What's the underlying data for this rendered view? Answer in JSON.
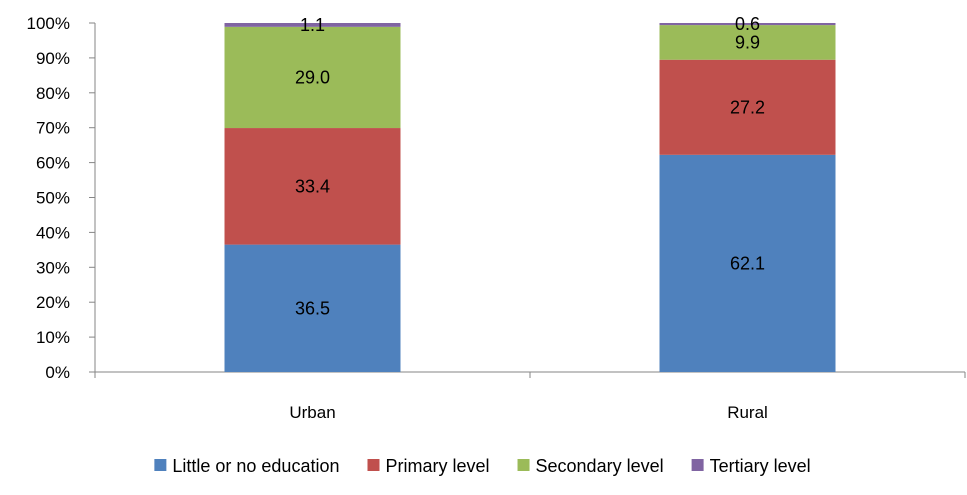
{
  "chart_data": {
    "type": "bar",
    "stacked": true,
    "normalized": true,
    "categories": [
      "Urban",
      "Rural"
    ],
    "series": [
      {
        "name": "Little or no education",
        "values": [
          36.5,
          62.1
        ],
        "color": "#4F81BD"
      },
      {
        "name": "Primary level",
        "values": [
          33.4,
          27.2
        ],
        "color": "#C0504D"
      },
      {
        "name": "Secondary level",
        "values": [
          29.0,
          9.9
        ],
        "color": "#9BBB59"
      },
      {
        "name": "Tertiary level",
        "values": [
          1.1,
          0.6
        ],
        "color": "#8064A2"
      }
    ],
    "y_ticks": [
      "0%",
      "10%",
      "20%",
      "30%",
      "40%",
      "50%",
      "60%",
      "70%",
      "80%",
      "90%",
      "100%"
    ],
    "ylim": [
      0,
      100
    ],
    "grid": false,
    "legend_position": "bottom",
    "title": "",
    "xlabel": "",
    "ylabel": ""
  }
}
